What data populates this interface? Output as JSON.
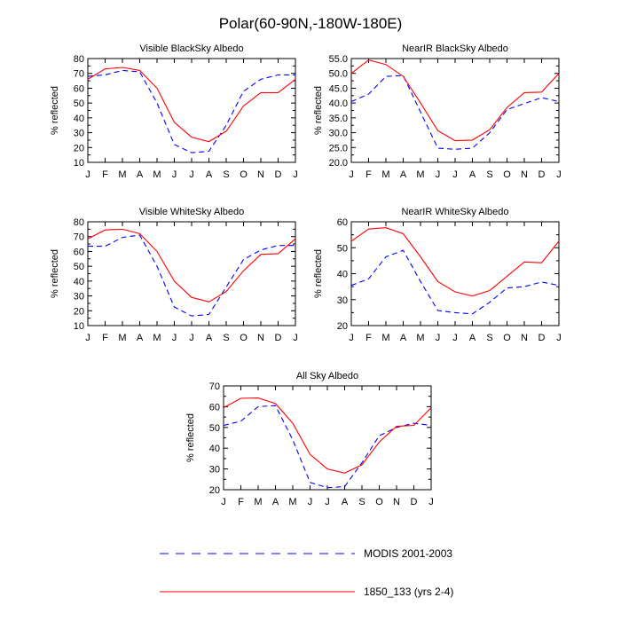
{
  "title": "Polar(60-90N,-180W-180E)",
  "legend": [
    {
      "name": "MODIS 2001-2003",
      "color": "#0000ff",
      "dash": "dashed"
    },
    {
      "name": "1850_133 (yrs 2-4)",
      "color": "#ff0000",
      "dash": "solid"
    }
  ],
  "chart_data": [
    {
      "type": "line",
      "title": "Visible BlackSky Albedo",
      "ylabel": "% reflected",
      "categories": [
        "J",
        "F",
        "M",
        "A",
        "M",
        "J",
        "J",
        "A",
        "S",
        "O",
        "N",
        "D",
        "J"
      ],
      "ylim": [
        10,
        80
      ],
      "yticks": [
        "10",
        "20",
        "30",
        "40",
        "50",
        "60",
        "70",
        "80"
      ],
      "series": [
        {
          "name": "MODIS 2001-2003",
          "values": [
            68,
            69,
            72,
            71,
            50,
            22,
            16.5,
            17.5,
            35,
            58,
            66,
            69,
            69
          ]
        },
        {
          "name": "1850_133 (yrs 2-4)",
          "values": [
            66,
            73,
            74,
            72,
            60,
            37,
            27,
            24,
            31,
            48,
            57,
            57,
            66
          ]
        }
      ]
    },
    {
      "type": "line",
      "title": "NearIR BlackSky Albedo",
      "ylabel": "% reflected",
      "categories": [
        "J",
        "F",
        "M",
        "A",
        "M",
        "J",
        "J",
        "A",
        "S",
        "O",
        "N",
        "D",
        "J"
      ],
      "ylim": [
        20,
        55
      ],
      "yticks": [
        "20.0",
        "25.0",
        "30.0",
        "35.0",
        "40.0",
        "45.0",
        "50.0",
        "55.0"
      ],
      "series": [
        {
          "name": "MODIS 2001-2003",
          "values": [
            40.5,
            43,
            49,
            49.3,
            37,
            24.8,
            24.4,
            24.8,
            30,
            37.8,
            39.8,
            41.8,
            40.5
          ]
        },
        {
          "name": "1850_133 (yrs 2-4)",
          "values": [
            50,
            54.5,
            53,
            49,
            40,
            30.7,
            27.3,
            27.5,
            31,
            38.5,
            43.5,
            43.7,
            50
          ]
        }
      ]
    },
    {
      "type": "line",
      "title": "Visible WhiteSky Albedo",
      "ylabel": "% reflected",
      "categories": [
        "J",
        "F",
        "M",
        "A",
        "M",
        "J",
        "J",
        "A",
        "S",
        "O",
        "N",
        "D",
        "J"
      ],
      "ylim": [
        10,
        80
      ],
      "yticks": [
        "10",
        "20",
        "30",
        "40",
        "50",
        "60",
        "70",
        "80"
      ],
      "series": [
        {
          "name": "MODIS 2001-2003",
          "values": [
            63.5,
            63.5,
            69.5,
            71,
            50,
            22.5,
            16.5,
            17.5,
            36,
            54.5,
            61,
            64,
            64
          ]
        },
        {
          "name": "1850_133 (yrs 2-4)",
          "values": [
            68.5,
            74.5,
            75,
            72,
            60,
            40,
            29,
            26,
            33,
            47,
            58,
            58.5,
            68.5
          ]
        }
      ]
    },
    {
      "type": "line",
      "title": "NearIR WhiteSky Albedo",
      "ylabel": "% reflected",
      "categories": [
        "J",
        "F",
        "M",
        "A",
        "M",
        "J",
        "J",
        "A",
        "S",
        "O",
        "N",
        "D",
        "J"
      ],
      "ylim": [
        20,
        60
      ],
      "yticks": [
        "20",
        "30",
        "40",
        "50",
        "60"
      ],
      "series": [
        {
          "name": "MODIS 2001-2003",
          "values": [
            35.5,
            38,
            46.5,
            49,
            37,
            25.8,
            25,
            24.5,
            29,
            34.5,
            35,
            36.8,
            35.5
          ]
        },
        {
          "name": "1850_133 (yrs 2-4)",
          "values": [
            52.5,
            57.2,
            57.7,
            55.4,
            46.5,
            37,
            33,
            31.4,
            33.5,
            39,
            44.5,
            44.2,
            52.5
          ]
        }
      ]
    },
    {
      "type": "line",
      "title": "All Sky Albedo",
      "ylabel": "% reflected",
      "categories": [
        "J",
        "F",
        "M",
        "A",
        "M",
        "J",
        "J",
        "A",
        "S",
        "O",
        "N",
        "D",
        "J"
      ],
      "ylim": [
        20,
        70
      ],
      "yticks": [
        "20",
        "30",
        "40",
        "50",
        "60",
        "70"
      ],
      "series": [
        {
          "name": "MODIS 2001-2003",
          "values": [
            51,
            53,
            60,
            60.5,
            44,
            23.5,
            21,
            21.5,
            33,
            46,
            50,
            52,
            51
          ]
        },
        {
          "name": "1850_133 (yrs 2-4)",
          "values": [
            59.5,
            64,
            64.2,
            61.5,
            52,
            37,
            30,
            28,
            32,
            43,
            50.5,
            51,
            59.5
          ]
        }
      ]
    }
  ]
}
